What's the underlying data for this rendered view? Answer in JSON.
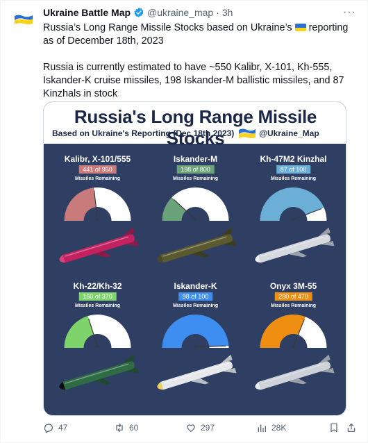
{
  "tweet": {
    "author": "Ukraine Battle Map",
    "handle": "@ukraine_map",
    "separator": "·",
    "time": "3h",
    "more_label": "···",
    "text_line1_a": "Russia’s Long Range Missile Stocks based on Ukraine’s",
    "text_line1_b": "reporting as of December 18th, 2023",
    "text_para2": "Russia is currently estimated to have ~550 Kalibr, X-101, Kh-555, Iskander-K cruise missiles, 198 Iskander-M ballistic missiles, and 87 Kinzhals in stock"
  },
  "infographic": {
    "title": "Russia's Long Range Missile Stocks",
    "subtitle": "Based on Ukraine's Reporting (Dec 18th 2023)",
    "handle": "@Ukraine_Map",
    "remaining_label": "Missiles Remaining",
    "missiles": [
      {
        "name": "Kalibr, X-101/555",
        "badge": "441 of 950",
        "remaining": 441,
        "total": 950,
        "color": "#c97b7b",
        "badge_color": "#c97b7b"
      },
      {
        "name": "Iskander-M",
        "badge": "198 of 800",
        "remaining": 198,
        "total": 800,
        "color": "#6aa37a",
        "badge_color": "#6aa37a"
      },
      {
        "name": "Kh-47M2 Kinzhal",
        "badge": "87 of 100",
        "remaining": 87,
        "total": 100,
        "color": "#6cafd6",
        "badge_color": "#6cafd6"
      },
      {
        "name": "Kh-22/Kh-32",
        "badge": "150 of 370",
        "remaining": 150,
        "total": 370,
        "color": "#7fd36b",
        "badge_color": "#7fd36b"
      },
      {
        "name": "Iskander-K",
        "badge": "98 of 100",
        "remaining": 98,
        "total": 100,
        "color": "#3d8ef0",
        "badge_color": "#3d8ef0"
      },
      {
        "name": "Onyx 3M-55",
        "badge": "290 of 470",
        "remaining": 290,
        "total": 470,
        "color": "#ef8f12",
        "badge_color": "#ef8f12"
      }
    ]
  },
  "actions": {
    "replies": "47",
    "retweets": "60",
    "likes": "297",
    "views": "28K"
  },
  "colors": {
    "accent": "#1d9bf0",
    "muted": "#536471",
    "flag_blue": "#2a6fd1",
    "flag_yellow": "#f7d21e"
  },
  "icons": [
    "ukraine-flag-avatar",
    "verified-badge-icon",
    "more-icon",
    "reply-icon",
    "retweet-icon",
    "like-icon",
    "views-icon",
    "bookmark-icon",
    "share-icon"
  ]
}
